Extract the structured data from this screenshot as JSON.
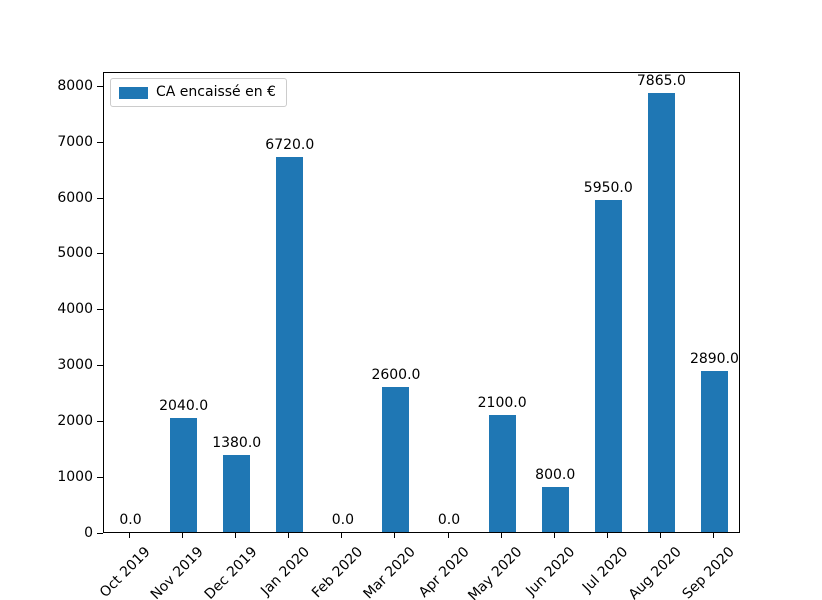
{
  "chart_data": {
    "type": "bar",
    "title": "",
    "xlabel": "",
    "ylabel": "",
    "categories": [
      "Oct 2019",
      "Nov 2019",
      "Dec 2019",
      "Jan 2020",
      "Feb 2020",
      "Mar 2020",
      "Apr 2020",
      "May 2020",
      "Jun 2020",
      "Jul 2020",
      "Aug 2020",
      "Sep 2020"
    ],
    "series": [
      {
        "name": "CA encaissé en €",
        "values": [
          0.0,
          2040.0,
          1380.0,
          6720.0,
          0.0,
          2600.0,
          0.0,
          2100.0,
          800.0,
          5950.0,
          7865.0,
          2890.0
        ],
        "labels": [
          "0.0",
          "2040.0",
          "1380.0",
          "6720.0",
          "0.0",
          "2600.0",
          "0.0",
          "2100.0",
          "800.0",
          "5950.0",
          "7865.0",
          "2890.0"
        ]
      }
    ],
    "ylim": [
      0,
      8258
    ],
    "yticks": [
      0,
      1000,
      2000,
      3000,
      4000,
      5000,
      6000,
      7000,
      8000
    ],
    "grid": false,
    "legend_position": "upper-left",
    "colors": {
      "bar": "#1f77b4",
      "spine": "#000000",
      "text": "#000000",
      "legend_border": "#cccccc",
      "background": "#ffffff"
    }
  }
}
